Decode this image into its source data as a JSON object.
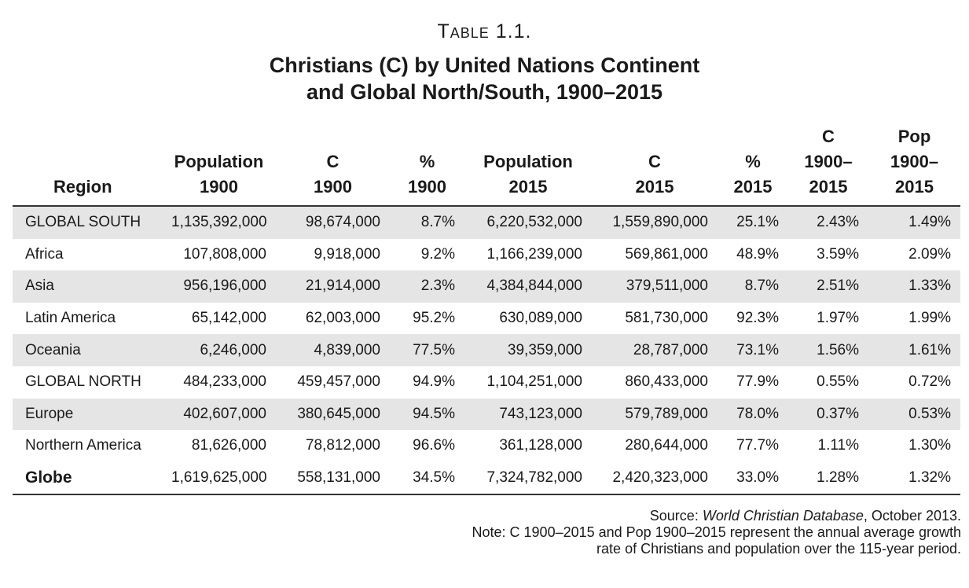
{
  "table_label": "Table 1.1.",
  "title": {
    "line1": "Christians (C) by United Nations Continent",
    "line2": "and Global North/South, 1900–2015"
  },
  "headers": [
    {
      "lines": [
        "Region"
      ]
    },
    {
      "lines": [
        "Population",
        "1900"
      ]
    },
    {
      "lines": [
        "C",
        "1900"
      ]
    },
    {
      "lines": [
        "%",
        "1900"
      ]
    },
    {
      "lines": [
        "Population",
        "2015"
      ]
    },
    {
      "lines": [
        "C",
        "2015"
      ]
    },
    {
      "lines": [
        "%",
        "2015"
      ]
    },
    {
      "lines": [
        "C",
        "1900–",
        "2015"
      ]
    },
    {
      "lines": [
        "Pop",
        "1900–",
        "2015"
      ]
    }
  ],
  "rows": [
    [
      "GLOBAL SOUTH",
      "1,135,392,000",
      "98,674,000",
      "8.7%",
      "6,220,532,000",
      "1,559,890,000",
      "25.1%",
      "2.43%",
      "1.49%"
    ],
    [
      "Africa",
      "107,808,000",
      "9,918,000",
      "9.2%",
      "1,166,239,000",
      "569,861,000",
      "48.9%",
      "3.59%",
      "2.09%"
    ],
    [
      "Asia",
      "956,196,000",
      "21,914,000",
      "2.3%",
      "4,384,844,000",
      "379,511,000",
      "8.7%",
      "2.51%",
      "1.33%"
    ],
    [
      "Latin America",
      "65,142,000",
      "62,003,000",
      "95.2%",
      "630,089,000",
      "581,730,000",
      "92.3%",
      "1.97%",
      "1.99%"
    ],
    [
      "Oceania",
      "6,246,000",
      "4,839,000",
      "77.5%",
      "39,359,000",
      "28,787,000",
      "73.1%",
      "1.56%",
      "1.61%"
    ],
    [
      "GLOBAL NORTH",
      "484,233,000",
      "459,457,000",
      "94.9%",
      "1,104,251,000",
      "860,433,000",
      "77.9%",
      "0.55%",
      "0.72%"
    ],
    [
      "Europe",
      "402,607,000",
      "380,645,000",
      "94.5%",
      "743,123,000",
      "579,789,000",
      "78.0%",
      "0.37%",
      "0.53%"
    ],
    [
      "Northern America",
      "81,626,000",
      "78,812,000",
      "96.6%",
      "361,128,000",
      "280,644,000",
      "77.7%",
      "1.11%",
      "1.30%"
    ],
    [
      "Globe",
      "1,619,625,000",
      "558,131,000",
      "34.5%",
      "7,324,782,000",
      "2,420,323,000",
      "33.0%",
      "1.28%",
      "1.32%"
    ]
  ],
  "notes": {
    "source_prefix": "Source: ",
    "source_title": "World Christian Database",
    "source_suffix": ", October 2013.",
    "note_line1": "Note: C 1900–2015 and Pop 1900–2015 represent the annual average growth",
    "note_line2": "rate of Christians and population over the 115-year period."
  }
}
